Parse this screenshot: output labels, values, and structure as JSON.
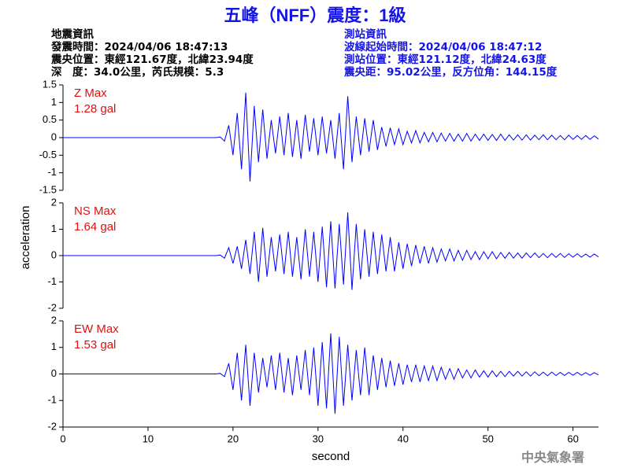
{
  "title": "五峰（NFF）震度：1級",
  "info_left": [
    "地震資訊",
    "發震時間：2024/04/06 18:47:13",
    "震央位置：東經121.67度，北緯23.94度",
    "深　度：34.0公里，芮氏規模：5.3"
  ],
  "info_right": [
    "測站資訊",
    "波線起始時間：2024/04/06 18:47:12",
    "測站位置：東經121.12度，北緯24.63度",
    "震央距：95.02公里，反方位角：144.15度"
  ],
  "footer": "中央氣象署",
  "chart_data": {
    "type": "line",
    "xlabel": "second",
    "ylabel": "acceleration",
    "xlim": [
      0,
      63
    ],
    "xticks": [
      0,
      10,
      20,
      30,
      40,
      50,
      60
    ],
    "x": [
      0,
      0.5,
      1,
      1.5,
      2,
      2.5,
      3,
      3.5,
      4,
      4.5,
      5,
      5.5,
      6,
      6.5,
      7,
      7.5,
      8,
      8.5,
      9,
      9.5,
      10,
      10.5,
      11,
      11.5,
      12,
      12.5,
      13,
      13.5,
      14,
      14.5,
      15,
      15.5,
      16,
      16.5,
      17,
      17.5,
      18,
      18.5,
      19,
      19.5,
      20,
      20.5,
      21,
      21.5,
      22,
      22.5,
      23,
      23.5,
      24,
      24.5,
      25,
      25.5,
      26,
      26.5,
      27,
      27.5,
      28,
      28.5,
      29,
      29.5,
      30,
      30.5,
      31,
      31.5,
      32,
      32.5,
      33,
      33.5,
      34,
      34.5,
      35,
      35.5,
      36,
      36.5,
      37,
      37.5,
      38,
      38.5,
      39,
      39.5,
      40,
      40.5,
      41,
      41.5,
      42,
      42.5,
      43,
      43.5,
      44,
      44.5,
      45,
      45.5,
      46,
      46.5,
      47,
      47.5,
      48,
      48.5,
      49,
      49.5,
      50,
      50.5,
      51,
      51.5,
      52,
      52.5,
      53,
      53.5,
      54,
      54.5,
      55,
      55.5,
      56,
      56.5,
      57,
      57.5,
      58,
      58.5,
      59,
      59.5,
      60,
      60.5,
      61,
      61.5,
      62,
      62.5,
      63
    ],
    "series": [
      {
        "name": "Z Max",
        "annotation": "1.28 gal",
        "color": "#0000ff",
        "ylim": [
          -1.5,
          1.5
        ],
        "yticks": [
          -1.5,
          -1,
          -0.5,
          0,
          0.5,
          1,
          1.5
        ],
        "values": [
          0,
          0,
          0,
          0,
          0,
          0,
          0,
          0,
          0,
          0,
          0,
          0,
          0,
          0,
          0,
          0,
          0,
          0,
          0,
          0,
          0,
          0,
          0,
          0,
          0,
          0,
          0,
          0,
          0,
          0,
          0,
          0,
          0,
          0,
          0,
          0,
          0,
          0.02,
          -0.1,
          0.35,
          -0.5,
          0.7,
          -0.9,
          1.28,
          -1.25,
          0.9,
          -0.7,
          0.8,
          -0.6,
          0.5,
          -0.45,
          0.6,
          -0.5,
          0.7,
          -0.55,
          0.5,
          -0.6,
          0.65,
          -0.4,
          0.55,
          -0.5,
          0.6,
          -0.45,
          0.5,
          -0.6,
          0.7,
          -0.9,
          1.18,
          -0.7,
          0.6,
          -0.5,
          0.55,
          -0.4,
          0.5,
          -0.35,
          0.3,
          -0.25,
          0.28,
          -0.2,
          0.25,
          -0.2,
          0.18,
          -0.15,
          0.2,
          -0.15,
          0.15,
          -0.12,
          0.15,
          -0.12,
          0.13,
          -0.1,
          0.12,
          -0.1,
          0.1,
          -0.1,
          0.12,
          -0.1,
          0.1,
          -0.08,
          0.1,
          -0.08,
          0.09,
          -0.08,
          0.1,
          -0.08,
          0.08,
          -0.07,
          0.08,
          -0.07,
          0.08,
          -0.07,
          0.07,
          -0.06,
          0.08,
          -0.06,
          0.07,
          -0.06,
          0.06,
          -0.06,
          0.07,
          -0.05,
          0.06,
          -0.05,
          0.06,
          -0.05,
          0.05,
          -0.04
        ]
      },
      {
        "name": "NS Max",
        "annotation": "1.64 gal",
        "color": "#0000ff",
        "ylim": [
          -2,
          2
        ],
        "yticks": [
          -2,
          -1,
          0,
          1,
          2
        ],
        "values": [
          0,
          0,
          0,
          0,
          0,
          0,
          0,
          0,
          0,
          0,
          0,
          0,
          0,
          0,
          0,
          0,
          0,
          0,
          0,
          0,
          0,
          0,
          0,
          0,
          0,
          0,
          0,
          0,
          0,
          0,
          0,
          0,
          0,
          0,
          0,
          0,
          0,
          0.02,
          -0.1,
          0.3,
          -0.3,
          0.35,
          -0.5,
          0.6,
          -0.7,
          0.9,
          -1.0,
          1.05,
          -0.8,
          0.7,
          -0.6,
          0.8,
          -0.7,
          0.9,
          -0.8,
          0.7,
          -0.9,
          1.0,
          -0.8,
          0.9,
          -1.0,
          1.1,
          -1.2,
          1.3,
          -1.25,
          1.2,
          -1.1,
          1.64,
          -1.3,
          1.2,
          -0.9,
          1.0,
          -0.8,
          0.9,
          -0.7,
          0.8,
          -0.6,
          0.7,
          -0.6,
          0.5,
          -0.5,
          0.45,
          -0.4,
          0.4,
          -0.3,
          0.35,
          -0.3,
          0.3,
          -0.25,
          0.25,
          -0.2,
          0.25,
          -0.2,
          0.2,
          -0.18,
          0.2,
          -0.15,
          0.15,
          -0.15,
          0.15,
          -0.12,
          0.15,
          -0.12,
          0.12,
          -0.1,
          0.12,
          -0.1,
          0.1,
          -0.1,
          0.1,
          -0.08,
          0.1,
          -0.08,
          0.08,
          -0.08,
          0.08,
          -0.07,
          0.08,
          -0.07,
          0.07,
          -0.06,
          0.07,
          -0.06,
          0.06,
          -0.06,
          0.06,
          -0.05
        ]
      },
      {
        "name": "EW Max",
        "annotation": "1.53 gal",
        "color": "#0000ff",
        "ylim": [
          -2,
          2
        ],
        "yticks": [
          -2,
          -1,
          0,
          1,
          2
        ],
        "values": [
          0,
          0,
          0,
          0,
          0,
          0,
          0,
          0,
          0,
          0,
          0,
          0,
          0,
          0,
          0,
          0,
          0,
          0,
          0,
          0,
          0,
          0,
          0,
          0,
          0,
          0,
          0,
          0,
          0,
          0,
          0,
          0,
          0,
          0,
          0,
          0,
          0,
          0.02,
          -0.1,
          0.4,
          -0.6,
          0.8,
          -1.0,
          1.1,
          -1.2,
          0.8,
          -0.7,
          0.6,
          -0.5,
          0.7,
          -0.6,
          0.8,
          -0.7,
          0.6,
          -0.8,
          0.7,
          -0.6,
          0.9,
          -0.8,
          1.0,
          -1.2,
          1.2,
          -1.3,
          1.53,
          -1.5,
          1.4,
          -1.2,
          1.1,
          -1.0,
          0.9,
          -0.8,
          1.0,
          -0.8,
          0.7,
          -0.6,
          0.6,
          -0.5,
          0.5,
          -0.45,
          0.4,
          -0.4,
          0.35,
          -0.3,
          0.35,
          -0.3,
          0.3,
          -0.25,
          0.3,
          -0.25,
          0.25,
          -0.2,
          0.2,
          -0.2,
          0.2,
          -0.15,
          0.15,
          -0.15,
          0.15,
          -0.12,
          0.12,
          -0.12,
          0.12,
          -0.1,
          0.1,
          -0.1,
          0.1,
          -0.08,
          0.1,
          -0.08,
          0.08,
          -0.08,
          0.08,
          -0.07,
          0.07,
          -0.07,
          0.07,
          -0.06,
          0.06,
          -0.06,
          0.06,
          -0.05,
          0.06,
          -0.05,
          0.05,
          -0.05,
          0.05,
          -0.04
        ]
      }
    ]
  }
}
